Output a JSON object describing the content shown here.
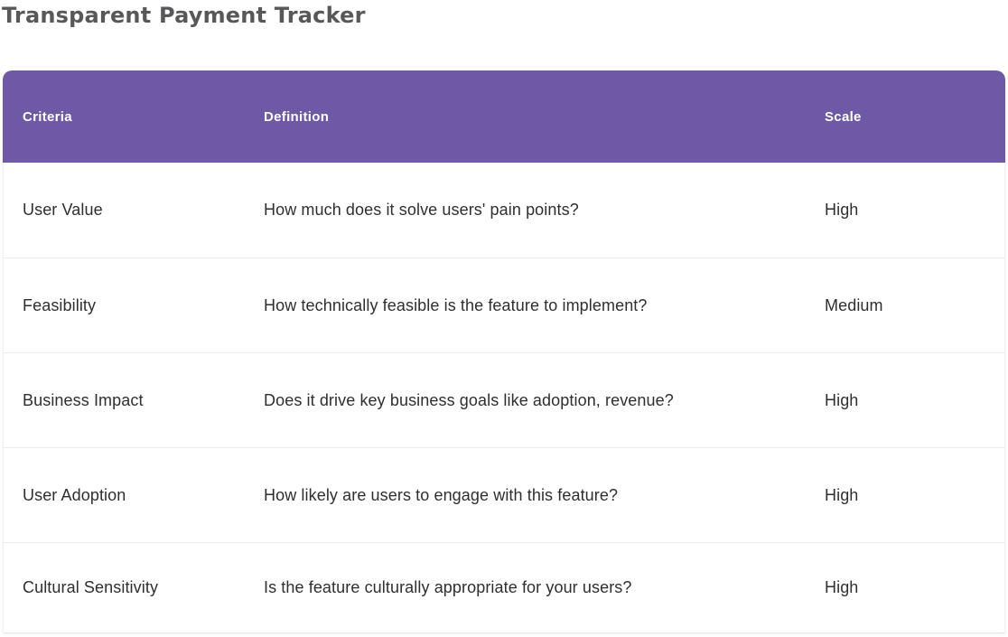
{
  "page": {
    "title": "Transparent Payment Tracker"
  },
  "colors": {
    "header_bg": "#6e59a6",
    "header_text": "#ffffff",
    "row_divider": "#ebebeb",
    "body_text": "#2f2f2f",
    "title_text": "#58585a"
  },
  "table": {
    "columns": {
      "criteria": "Criteria",
      "definition": "Definition",
      "scale": "Scale"
    },
    "rows": [
      {
        "criteria": "User Value",
        "definition": "How much does it solve users' pain points?",
        "scale": "High"
      },
      {
        "criteria": "Feasibility",
        "definition": "How technically feasible is the feature to implement?",
        "scale": "Medium"
      },
      {
        "criteria": "Business Impact",
        "definition": "Does it drive key business goals like adoption, revenue?",
        "scale": "High"
      },
      {
        "criteria": "User Adoption",
        "definition": "How likely are users to engage with this feature?",
        "scale": "High"
      },
      {
        "criteria": "Cultural Sensitivity",
        "definition": "Is the feature culturally appropriate for your users?",
        "scale": "High"
      }
    ]
  }
}
